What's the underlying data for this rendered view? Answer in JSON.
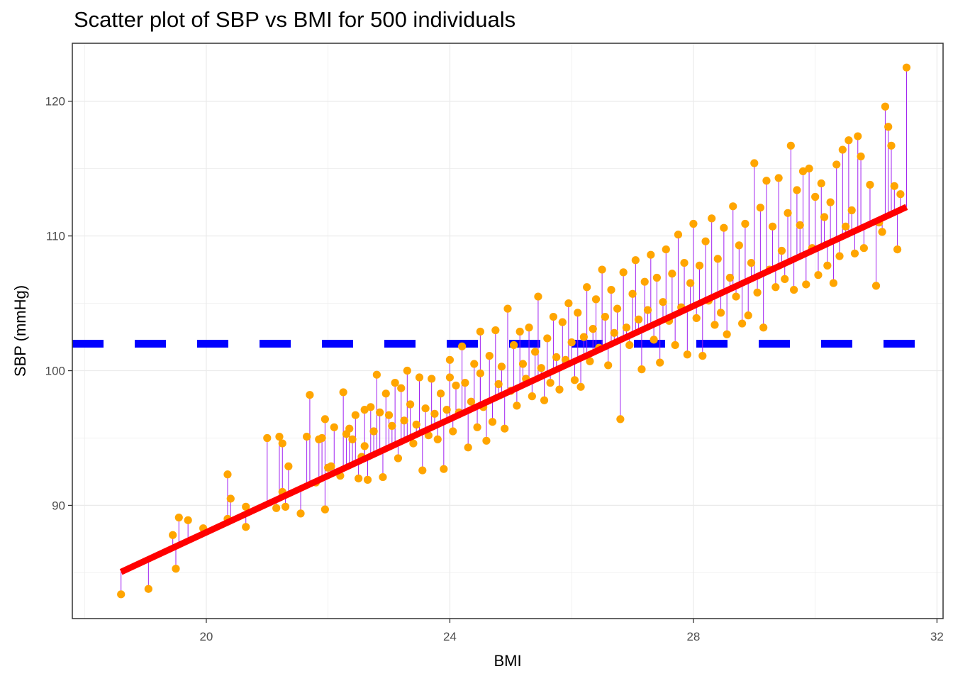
{
  "chart_data": {
    "type": "scatter",
    "title": "Scatter plot of SBP vs BMI for 500 individuals",
    "xlabel": "BMI",
    "ylabel": "SBP (mmHg)",
    "xlim": [
      17.8,
      32.1
    ],
    "ylim": [
      81.6,
      124.3
    ],
    "x_ticks": [
      20,
      24,
      28,
      32
    ],
    "y_ticks": [
      90,
      100,
      110,
      120
    ],
    "x_tick_labels": [
      "20",
      "24",
      "28",
      "32"
    ],
    "y_tick_labels": [
      "90",
      "100",
      "110",
      "120"
    ],
    "grid": true,
    "point_color": "#FFA500",
    "residual_color": "#A020F0",
    "regression_line": {
      "color": "#FF0000",
      "intercept": 46.0,
      "slope": 2.1,
      "x_range": [
        18.6,
        31.5
      ]
    },
    "mean_line": {
      "color": "#0000FF",
      "y": 102.0,
      "style": "dashed",
      "x_range": [
        17.8,
        31.8
      ]
    },
    "points": [
      [
        18.6,
        83.4
      ],
      [
        19.05,
        83.8
      ],
      [
        19.45,
        87.8
      ],
      [
        19.5,
        85.3
      ],
      [
        19.55,
        89.1
      ],
      [
        19.7,
        88.9
      ],
      [
        19.95,
        88.3
      ],
      [
        20.35,
        92.3
      ],
      [
        20.35,
        89.0
      ],
      [
        20.4,
        90.5
      ],
      [
        20.65,
        89.9
      ],
      [
        20.65,
        88.4
      ],
      [
        21.0,
        95.0
      ],
      [
        21.15,
        89.8
      ],
      [
        21.2,
        95.1
      ],
      [
        21.25,
        94.6
      ],
      [
        21.25,
        91.0
      ],
      [
        21.3,
        89.9
      ],
      [
        21.35,
        92.9
      ],
      [
        21.55,
        89.4
      ],
      [
        21.65,
        95.1
      ],
      [
        21.7,
        98.2
      ],
      [
        21.8,
        91.7
      ],
      [
        21.85,
        94.9
      ],
      [
        21.9,
        95.0
      ],
      [
        21.95,
        96.4
      ],
      [
        21.95,
        89.7
      ],
      [
        22.0,
        92.8
      ],
      [
        22.05,
        92.9
      ],
      [
        22.1,
        95.8
      ],
      [
        22.2,
        92.2
      ],
      [
        22.25,
        98.4
      ],
      [
        22.3,
        95.3
      ],
      [
        22.35,
        95.7
      ],
      [
        22.4,
        94.9
      ],
      [
        22.45,
        96.7
      ],
      [
        22.5,
        92.0
      ],
      [
        22.55,
        93.6
      ],
      [
        22.6,
        97.1
      ],
      [
        22.6,
        94.4
      ],
      [
        22.65,
        91.9
      ],
      [
        22.7,
        97.3
      ],
      [
        22.75,
        95.5
      ],
      [
        22.8,
        99.7
      ],
      [
        22.85,
        96.9
      ],
      [
        22.9,
        92.1
      ],
      [
        22.95,
        98.3
      ],
      [
        23.0,
        96.7
      ],
      [
        23.05,
        95.9
      ],
      [
        23.1,
        99.1
      ],
      [
        23.15,
        93.5
      ],
      [
        23.2,
        98.7
      ],
      [
        23.25,
        96.3
      ],
      [
        23.3,
        100.0
      ],
      [
        23.35,
        97.5
      ],
      [
        23.4,
        94.6
      ],
      [
        23.45,
        96.0
      ],
      [
        23.5,
        99.5
      ],
      [
        23.55,
        92.6
      ],
      [
        23.6,
        97.2
      ],
      [
        23.65,
        95.2
      ],
      [
        23.7,
        99.4
      ],
      [
        23.75,
        96.8
      ],
      [
        23.8,
        94.9
      ],
      [
        23.85,
        98.3
      ],
      [
        23.9,
        92.7
      ],
      [
        23.95,
        97.1
      ],
      [
        24.0,
        99.5
      ],
      [
        24.0,
        100.8
      ],
      [
        24.05,
        95.5
      ],
      [
        24.1,
        98.9
      ],
      [
        24.15,
        96.9
      ],
      [
        24.2,
        101.8
      ],
      [
        24.25,
        99.1
      ],
      [
        24.3,
        94.3
      ],
      [
        24.35,
        97.7
      ],
      [
        24.4,
        100.5
      ],
      [
        24.45,
        95.8
      ],
      [
        24.5,
        99.8
      ],
      [
        24.5,
        102.9
      ],
      [
        24.55,
        97.3
      ],
      [
        24.6,
        94.8
      ],
      [
        24.65,
        101.1
      ],
      [
        24.7,
        96.2
      ],
      [
        24.75,
        103.0
      ],
      [
        24.8,
        99.0
      ],
      [
        24.85,
        100.3
      ],
      [
        24.9,
        95.7
      ],
      [
        24.95,
        104.6
      ],
      [
        25.0,
        98.5
      ],
      [
        25.05,
        101.9
      ],
      [
        25.1,
        97.4
      ],
      [
        25.15,
        102.9
      ],
      [
        25.2,
        100.5
      ],
      [
        25.25,
        99.4
      ],
      [
        25.3,
        103.2
      ],
      [
        25.35,
        98.1
      ],
      [
        25.4,
        101.4
      ],
      [
        25.45,
        105.5
      ],
      [
        25.5,
        100.2
      ],
      [
        25.55,
        97.8
      ],
      [
        25.6,
        102.4
      ],
      [
        25.65,
        99.1
      ],
      [
        25.7,
        104.0
      ],
      [
        25.75,
        101.0
      ],
      [
        25.8,
        98.6
      ],
      [
        25.85,
        103.6
      ],
      [
        25.9,
        100.8
      ],
      [
        25.95,
        105.0
      ],
      [
        26.0,
        102.1
      ],
      [
        26.05,
        99.3
      ],
      [
        26.1,
        104.3
      ],
      [
        26.15,
        98.8
      ],
      [
        26.2,
        102.5
      ],
      [
        26.25,
        106.2
      ],
      [
        26.3,
        100.7
      ],
      [
        26.35,
        103.1
      ],
      [
        26.4,
        105.3
      ],
      [
        26.45,
        101.7
      ],
      [
        26.5,
        107.5
      ],
      [
        26.55,
        104.0
      ],
      [
        26.6,
        100.4
      ],
      [
        26.65,
        106.0
      ],
      [
        26.7,
        102.8
      ],
      [
        26.75,
        104.6
      ],
      [
        26.8,
        96.4
      ],
      [
        26.85,
        107.3
      ],
      [
        26.9,
        103.2
      ],
      [
        26.95,
        101.9
      ],
      [
        27.0,
        105.7
      ],
      [
        27.05,
        108.2
      ],
      [
        27.1,
        103.8
      ],
      [
        27.15,
        100.1
      ],
      [
        27.2,
        106.6
      ],
      [
        27.25,
        104.5
      ],
      [
        27.3,
        108.6
      ],
      [
        27.35,
        102.3
      ],
      [
        27.4,
        106.9
      ],
      [
        27.45,
        100.6
      ],
      [
        27.5,
        105.1
      ],
      [
        27.55,
        109.0
      ],
      [
        27.6,
        103.7
      ],
      [
        27.65,
        107.2
      ],
      [
        27.7,
        101.9
      ],
      [
        27.75,
        110.1
      ],
      [
        27.8,
        104.7
      ],
      [
        27.85,
        108.0
      ],
      [
        27.9,
        101.2
      ],
      [
        27.95,
        106.5
      ],
      [
        28.0,
        110.9
      ],
      [
        28.05,
        103.9
      ],
      [
        28.1,
        107.8
      ],
      [
        28.15,
        101.1
      ],
      [
        28.2,
        109.6
      ],
      [
        28.25,
        105.2
      ],
      [
        28.3,
        111.3
      ],
      [
        28.35,
        103.4
      ],
      [
        28.4,
        108.3
      ],
      [
        28.45,
        104.3
      ],
      [
        28.5,
        110.6
      ],
      [
        28.55,
        102.7
      ],
      [
        28.6,
        106.9
      ],
      [
        28.65,
        112.2
      ],
      [
        28.7,
        105.5
      ],
      [
        28.75,
        109.3
      ],
      [
        28.8,
        103.5
      ],
      [
        28.85,
        110.9
      ],
      [
        28.9,
        104.1
      ],
      [
        28.95,
        108.0
      ],
      [
        29.0,
        115.4
      ],
      [
        29.05,
        105.8
      ],
      [
        29.1,
        112.1
      ],
      [
        29.15,
        103.2
      ],
      [
        29.2,
        114.1
      ],
      [
        29.25,
        107.5
      ],
      [
        29.3,
        110.7
      ],
      [
        29.35,
        106.2
      ],
      [
        29.4,
        114.3
      ],
      [
        29.45,
        108.9
      ],
      [
        29.5,
        106.8
      ],
      [
        29.55,
        111.7
      ],
      [
        29.6,
        116.7
      ],
      [
        29.65,
        106.0
      ],
      [
        29.7,
        113.4
      ],
      [
        29.75,
        110.8
      ],
      [
        29.8,
        114.8
      ],
      [
        29.85,
        106.4
      ],
      [
        29.9,
        115.0
      ],
      [
        29.95,
        109.1
      ],
      [
        30.0,
        112.9
      ],
      [
        30.05,
        107.1
      ],
      [
        30.1,
        113.9
      ],
      [
        30.15,
        111.4
      ],
      [
        30.2,
        107.8
      ],
      [
        30.25,
        112.5
      ],
      [
        30.3,
        106.5
      ],
      [
        30.35,
        115.3
      ],
      [
        30.4,
        108.5
      ],
      [
        30.45,
        116.4
      ],
      [
        30.5,
        110.7
      ],
      [
        30.55,
        117.1
      ],
      [
        30.6,
        111.9
      ],
      [
        30.65,
        108.7
      ],
      [
        30.7,
        117.4
      ],
      [
        30.75,
        115.9
      ],
      [
        30.8,
        109.1
      ],
      [
        30.9,
        113.8
      ],
      [
        31.0,
        106.3
      ],
      [
        31.05,
        111.0
      ],
      [
        31.1,
        110.3
      ],
      [
        31.15,
        119.6
      ],
      [
        31.2,
        118.1
      ],
      [
        31.25,
        116.7
      ],
      [
        31.3,
        113.7
      ],
      [
        31.35,
        109.0
      ],
      [
        31.4,
        113.1
      ],
      [
        31.5,
        122.5
      ]
    ]
  }
}
